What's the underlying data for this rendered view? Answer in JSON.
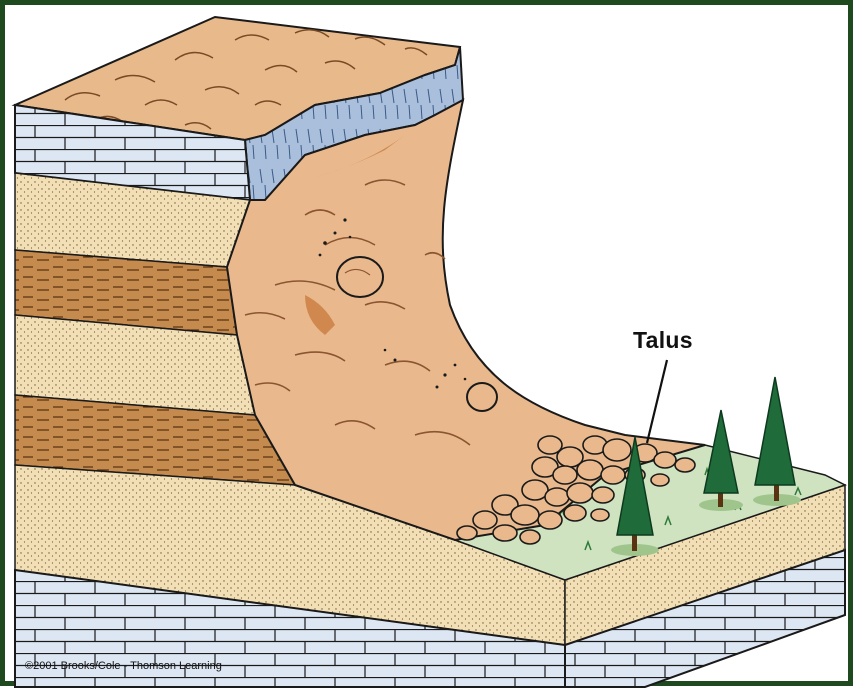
{
  "figure": {
    "label": "Talus",
    "copyright": "©2001 Brooks/Cole - Thomson Learning"
  },
  "colors": {
    "frame": "#1f4a1f",
    "limestone": "#dde7f3",
    "limestone_front": "#a9bfdc",
    "sandstone": "#f3dfb5",
    "shale": "#c48a4e",
    "rockfall": "#e9b98d",
    "rockfall_dark": "#d0884f",
    "cap_top": "#e8b98b",
    "grass": "#cfe3c0",
    "tree": "#1f6b3a"
  }
}
